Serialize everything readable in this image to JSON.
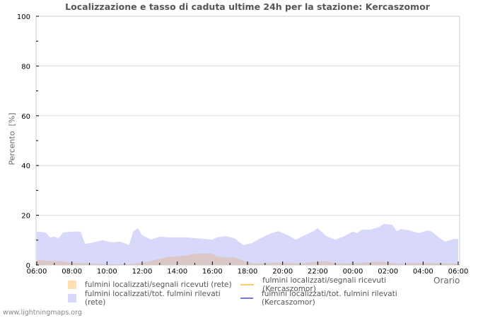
{
  "title": "Localizzazione e tasso di caduta ultime 24h per la stazione: Kercaszomor",
  "ylabel": "Percento  [%]",
  "xlabel": "Orario",
  "footer": "www.lightningmaps.org",
  "colors": {
    "orange_fill": "#ffe0b0",
    "blue_fill": "#d8d8fb",
    "overlap_fill": "#dcc6c6",
    "orange_line": "#ffcc66",
    "blue_line": "#7777ee",
    "frame": "#cccccc"
  },
  "legend": [
    {
      "label": "fulmini localizzati/segnali ricevuti (rete)",
      "type": "box",
      "color": "#ffe0b0"
    },
    {
      "label": "fulmini localizzati/segnali ricevuti (Kercaszomor)",
      "type": "line",
      "color": "#ffcc66"
    },
    {
      "label": "fulmini localizzati/tot. fulmini rilevati (rete)",
      "type": "box",
      "color": "#d8d8fb"
    },
    {
      "label": "fulmini localizzati/tot. fulmini rilevati (Kercaszomor)",
      "type": "line",
      "color": "#7777ee"
    }
  ],
  "chart_data": {
    "type": "area",
    "title": "Localizzazione e tasso di caduta ultime 24h per la stazione: Kercaszomor",
    "xlabel": "Orario",
    "ylabel": "Percento [%]",
    "ylim": [
      0,
      100
    ],
    "yticks": [
      0,
      20,
      40,
      60,
      80,
      100
    ],
    "xticks": [
      "06:00",
      "08:00",
      "10:00",
      "12:00",
      "14:00",
      "16:00",
      "18:00",
      "20:00",
      "22:00",
      "00:00",
      "02:00",
      "04:00",
      "06:00"
    ],
    "grid": true,
    "legend_position": "bottom",
    "x_hours": [
      0,
      0.5,
      0.75,
      1,
      1.25,
      1.5,
      2,
      2.5,
      2.75,
      3.25,
      3.75,
      4.25,
      4.75,
      5.25,
      5.5,
      5.75,
      6,
      6.5,
      7,
      7.5,
      8,
      8.5,
      9,
      9.5,
      10,
      10.25,
      10.75,
      11.25,
      11.75,
      12.25,
      12.75,
      13.25,
      13.75,
      14.25,
      14.75,
      15.25,
      15.75,
      16,
      16.5,
      17,
      17.5,
      18,
      18.25,
      18.5,
      19,
      19.5,
      19.75,
      20.25,
      20.5,
      20.75,
      21.25,
      21.75,
      22.25,
      22.5,
      23,
      23.25,
      23.75,
      24
    ],
    "series": [
      {
        "name": "fulmini localizzati/tot. fulmini rilevati (rete)",
        "values": [
          13.4,
          13.1,
          11.1,
          11.4,
          10.8,
          13.1,
          13.4,
          13.4,
          8.5,
          9.1,
          10.0,
          9.1,
          9.4,
          8.0,
          13.6,
          14.8,
          12.0,
          10.2,
          11.4,
          11.1,
          11.1,
          11.1,
          10.8,
          10.5,
          10.2,
          11.1,
          11.6,
          10.8,
          8.0,
          8.8,
          10.8,
          12.5,
          13.6,
          12.2,
          10.2,
          11.9,
          13.6,
          14.8,
          11.6,
          10.2,
          11.6,
          13.4,
          12.8,
          14.2,
          14.2,
          15.3,
          16.5,
          16.2,
          13.6,
          14.5,
          13.9,
          12.8,
          13.9,
          13.4,
          10.5,
          9.4,
          10.5,
          10.5
        ]
      },
      {
        "name": "fulmini localizzati/segnali ricevuti (rete)",
        "values": [
          2.0,
          1.8,
          1.7,
          1.5,
          1.6,
          1.5,
          0.8,
          0.8,
          0.7,
          0.6,
          0.4,
          0.3,
          0.3,
          0.3,
          0.5,
          0.7,
          0.8,
          1.6,
          2.5,
          3.2,
          3.5,
          3.8,
          4.5,
          4.7,
          4.5,
          3.5,
          3.0,
          3.0,
          1.8,
          0.6,
          0.7,
          0.8,
          1.0,
          0.8,
          0.6,
          0.7,
          1.2,
          1.3,
          1.5,
          0.7,
          0.6,
          0.7,
          0.6,
          0.8,
          1.2,
          1.3,
          1.2,
          0.8,
          0.6,
          0.5,
          0.7,
          0.8,
          0.8,
          0.7,
          0.7,
          0.6,
          0.6,
          0.6
        ]
      },
      {
        "name": "fulmini localizzati/segnali ricevuti (Kercaszomor)",
        "values": []
      },
      {
        "name": "fulmini localizzati/tot. fulmini rilevati (Kercaszomor)",
        "values": []
      }
    ]
  }
}
